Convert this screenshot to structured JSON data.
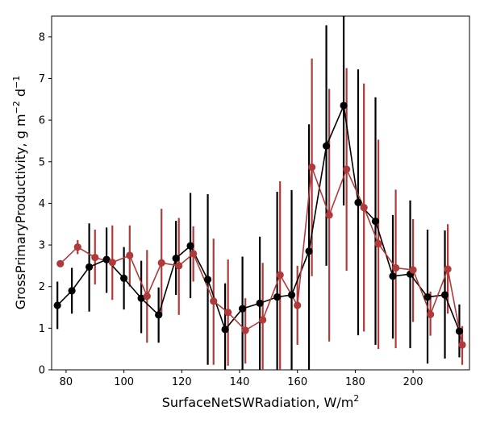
{
  "chart_data": {
    "type": "line",
    "xlabel": "SurfaceNetSWRadiation,  W/m",
    "xlabel_sup": "2",
    "ylabel_parts": [
      "GrossPrimaryProductivity,  g m",
      "−2",
      " d",
      "−1"
    ],
    "xlim": [
      75,
      219.5
    ],
    "ylim": [
      0,
      8.5
    ],
    "x_ticks": [
      80,
      100,
      120,
      140,
      160,
      180,
      200
    ],
    "y_ticks": [
      0,
      1,
      2,
      3,
      4,
      5,
      6,
      7,
      8
    ],
    "grid": false,
    "legend": "none",
    "series": [
      {
        "color": "#000000",
        "x": [
          77,
          82,
          88,
          94,
          100,
          106,
          112,
          118,
          123,
          129,
          135,
          141,
          147,
          153,
          158,
          164,
          170,
          176,
          181,
          187,
          193,
          199,
          205,
          211,
          216
        ],
        "y": [
          1.55,
          1.9,
          2.47,
          2.65,
          2.2,
          1.72,
          1.32,
          2.68,
          2.98,
          2.17,
          0.97,
          1.47,
          1.6,
          1.75,
          1.8,
          2.85,
          5.38,
          6.35,
          4.02,
          3.57,
          2.25,
          2.3,
          1.75,
          1.8,
          0.93
        ],
        "err_low": [
          0.98,
          1.35,
          1.4,
          1.85,
          1.45,
          0.88,
          0.65,
          1.8,
          1.72,
          0.12,
          0.0,
          0.0,
          0.0,
          0.0,
          0.0,
          0.0,
          2.5,
          3.95,
          0.83,
          0.6,
          0.75,
          0.52,
          0.15,
          0.27,
          0.3
        ],
        "err_high": [
          2.12,
          2.45,
          3.52,
          3.42,
          2.95,
          2.62,
          1.98,
          3.58,
          4.25,
          4.22,
          2.08,
          2.72,
          3.2,
          4.28,
          4.32,
          5.9,
          8.28,
          8.5,
          7.22,
          6.55,
          3.72,
          4.07,
          3.37,
          3.35,
          1.57
        ]
      },
      {
        "color": "#b03a3a",
        "x": [
          78,
          84,
          90,
          96,
          102,
          108,
          113,
          119,
          124,
          131,
          136,
          142,
          148,
          154,
          160,
          165,
          171,
          177,
          183,
          188,
          194,
          200,
          206,
          212,
          217
        ],
        "y": [
          2.55,
          2.95,
          2.7,
          2.58,
          2.75,
          1.77,
          2.57,
          2.5,
          2.79,
          1.65,
          1.38,
          0.95,
          1.2,
          2.28,
          1.55,
          4.87,
          3.72,
          4.82,
          3.9,
          3.03,
          2.45,
          2.4,
          1.33,
          2.42,
          0.6
        ],
        "err_low": [
          2.52,
          2.78,
          2.05,
          1.68,
          2.0,
          0.65,
          1.3,
          1.32,
          2.12,
          0.12,
          0.1,
          0.15,
          0.0,
          0.0,
          0.6,
          2.25,
          0.68,
          2.38,
          0.92,
          0.5,
          0.52,
          1.15,
          0.82,
          1.35,
          0.12
        ],
        "err_high": [
          2.58,
          3.12,
          3.37,
          3.47,
          3.47,
          2.88,
          3.87,
          3.65,
          3.45,
          3.15,
          2.65,
          1.72,
          2.57,
          4.53,
          2.5,
          7.48,
          6.75,
          7.25,
          6.88,
          5.53,
          4.33,
          3.62,
          1.88,
          3.5,
          1.05
        ]
      }
    ]
  }
}
